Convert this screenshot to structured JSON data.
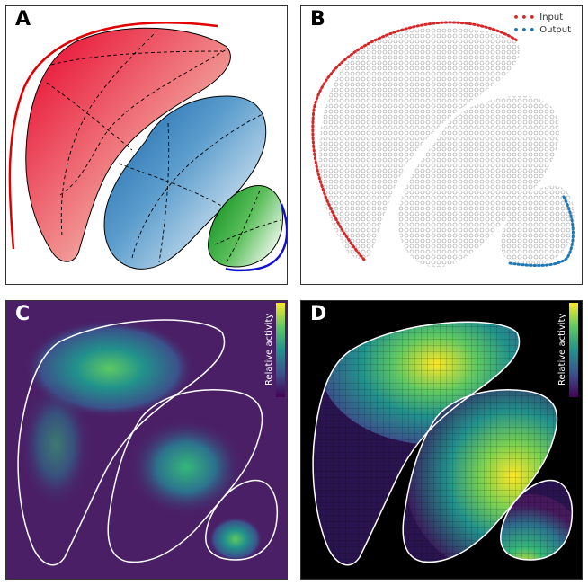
{
  "panels": {
    "a": {
      "label": "A"
    },
    "b": {
      "label": "B",
      "legend": [
        {
          "name": "Input",
          "color": "#d62728"
        },
        {
          "name": "Output",
          "color": "#1f77b4"
        }
      ]
    },
    "c": {
      "label": "C",
      "colorbar_label": "Relative activity"
    },
    "d": {
      "label": "D",
      "colorbar_label": "Relative activity"
    }
  },
  "colors": {
    "region1": "#e8002a",
    "region2": "#1f6fb0",
    "region3": "#1a9a2a",
    "input_marker": "#d62728",
    "output_marker": "#1f77b4",
    "arc_red": "#e00000",
    "arc_blue": "#1010d0",
    "viridis_low": "#440154",
    "viridis_high": "#fde725"
  }
}
